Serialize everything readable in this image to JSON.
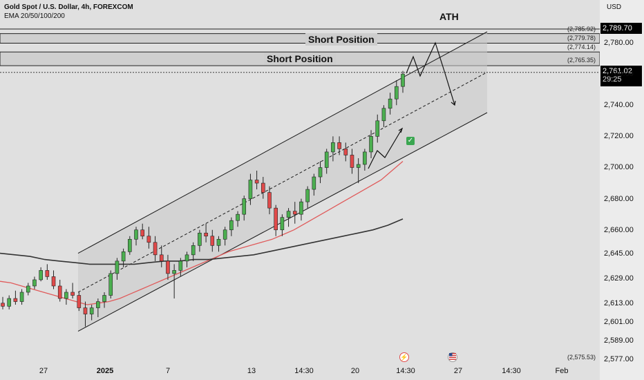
{
  "header": {
    "symbol_line": "Gold Spot / U.S. Dollar, 4h, FOREXCOM",
    "indicator_line": "EMA 20/50/100/200"
  },
  "currency": "USD",
  "annotations": {
    "ath": "ATH",
    "short_upper": "Short Position",
    "short_lower": "Short Position",
    "check": "✓",
    "flash_icon": "lightning-icon",
    "flag_icon": "us-flag-icon"
  },
  "price_tags": {
    "top": "2,789.70",
    "current": "2,761.02",
    "countdown": "29:25"
  },
  "level_labels": [
    "(2,785.92)",
    "(2,779.78)",
    "(2,774.14)",
    "(2,765.35)",
    "(2,575.53)"
  ],
  "colors": {
    "up": "#4caf50",
    "down": "#e04a4a",
    "ema_red": "#e05a5a",
    "ema_black": "#333333",
    "channel": "#1a1a1a"
  },
  "chart_data": {
    "type": "candlestick",
    "y_ticks": [
      "2,780.00",
      "2,760.00",
      "2,740.00",
      "2,720.00",
      "2,700.00",
      "2,680.00",
      "2,660.00",
      "2,645.00",
      "2,629.00",
      "2,613.00",
      "2,601.00",
      "2,589.00",
      "2,577.00"
    ],
    "x_ticks": [
      "27",
      "2025",
      "7",
      "13",
      "14:30",
      "20",
      "14:30",
      "27",
      "14:30",
      "Feb"
    ],
    "ylim": [
      2577,
      2790
    ],
    "candles": [
      [
        2613,
        2617,
        2609,
        2611
      ],
      [
        2611,
        2618,
        2609,
        2616
      ],
      [
        2616,
        2621,
        2612,
        2614
      ],
      [
        2614,
        2622,
        2612,
        2620
      ],
      [
        2620,
        2626,
        2618,
        2624
      ],
      [
        2624,
        2630,
        2622,
        2628
      ],
      [
        2628,
        2636,
        2627,
        2634
      ],
      [
        2634,
        2638,
        2628,
        2630
      ],
      [
        2630,
        2634,
        2622,
        2624
      ],
      [
        2624,
        2628,
        2614,
        2616
      ],
      [
        2616,
        2622,
        2612,
        2620
      ],
      [
        2620,
        2626,
        2616,
        2618
      ],
      [
        2618,
        2620,
        2608,
        2610
      ],
      [
        2610,
        2614,
        2598,
        2606
      ],
      [
        2606,
        2612,
        2602,
        2610
      ],
      [
        2610,
        2616,
        2604,
        2614
      ],
      [
        2614,
        2620,
        2610,
        2618
      ],
      [
        2618,
        2634,
        2616,
        2632
      ],
      [
        2632,
        2642,
        2628,
        2640
      ],
      [
        2640,
        2648,
        2636,
        2646
      ],
      [
        2646,
        2656,
        2644,
        2654
      ],
      [
        2654,
        2662,
        2650,
        2660
      ],
      [
        2660,
        2664,
        2654,
        2656
      ],
      [
        2656,
        2662,
        2648,
        2652
      ],
      [
        2652,
        2656,
        2640,
        2644
      ],
      [
        2644,
        2650,
        2636,
        2640
      ],
      [
        2640,
        2644,
        2628,
        2632
      ],
      [
        2632,
        2638,
        2616,
        2634
      ],
      [
        2634,
        2642,
        2630,
        2640
      ],
      [
        2640,
        2646,
        2636,
        2644
      ],
      [
        2644,
        2652,
        2640,
        2650
      ],
      [
        2650,
        2660,
        2646,
        2658
      ],
      [
        2658,
        2664,
        2652,
        2656
      ],
      [
        2656,
        2660,
        2646,
        2650
      ],
      [
        2650,
        2656,
        2646,
        2654
      ],
      [
        2654,
        2662,
        2650,
        2660
      ],
      [
        2660,
        2668,
        2656,
        2666
      ],
      [
        2666,
        2672,
        2662,
        2670
      ],
      [
        2670,
        2682,
        2666,
        2680
      ],
      [
        2680,
        2696,
        2676,
        2692
      ],
      [
        2692,
        2698,
        2686,
        2690
      ],
      [
        2690,
        2694,
        2680,
        2684
      ],
      [
        2684,
        2688,
        2670,
        2674
      ],
      [
        2674,
        2676,
        2656,
        2660
      ],
      [
        2660,
        2670,
        2656,
        2668
      ],
      [
        2668,
        2674,
        2662,
        2672
      ],
      [
        2672,
        2678,
        2664,
        2670
      ],
      [
        2670,
        2680,
        2666,
        2678
      ],
      [
        2678,
        2688,
        2674,
        2686
      ],
      [
        2686,
        2696,
        2682,
        2694
      ],
      [
        2694,
        2704,
        2690,
        2700
      ],
      [
        2700,
        2712,
        2696,
        2710
      ],
      [
        2710,
        2720,
        2704,
        2716
      ],
      [
        2716,
        2720,
        2708,
        2712
      ],
      [
        2712,
        2716,
        2704,
        2708
      ],
      [
        2708,
        2712,
        2696,
        2700
      ],
      [
        2700,
        2706,
        2690,
        2702
      ],
      [
        2702,
        2712,
        2698,
        2710
      ],
      [
        2710,
        2724,
        2706,
        2720
      ],
      [
        2720,
        2734,
        2716,
        2730
      ],
      [
        2730,
        2740,
        2726,
        2738
      ],
      [
        2738,
        2748,
        2734,
        2744
      ],
      [
        2744,
        2756,
        2740,
        2752
      ],
      [
        2752,
        2762,
        2748,
        2760
      ]
    ],
    "ema_20_50": [
      2627,
      2626,
      2624,
      2622,
      2620,
      2618,
      2616,
      2614,
      2612,
      2613,
      2614,
      2616,
      2619,
      2622,
      2625,
      2628,
      2631,
      2634,
      2637,
      2640,
      2643,
      2646,
      2648,
      2650,
      2652,
      2654,
      2657,
      2660,
      2664,
      2668,
      2672,
      2676,
      2680,
      2684,
      2688,
      2692,
      2698,
      2704
    ],
    "ema_100_200": [
      2645,
      2644,
      2643,
      2641,
      2640,
      2639,
      2638,
      2638,
      2638,
      2638,
      2639,
      2640,
      2640,
      2641,
      2641,
      2642,
      2643,
      2644,
      2646,
      2648,
      2650,
      2652,
      2654,
      2656,
      2658,
      2660,
      2663,
      2667
    ],
    "channel_upper": [
      [
        2605,
        2645
      ],
      [
        2790,
        2790
      ]
    ],
    "channel_lower": [
      [
        2595,
        2595
      ],
      [
        2740,
        2740
      ]
    ],
    "short_zones": [
      [
        2779.78,
        2785.92
      ],
      [
        2765.35,
        2774.14
      ]
    ]
  }
}
